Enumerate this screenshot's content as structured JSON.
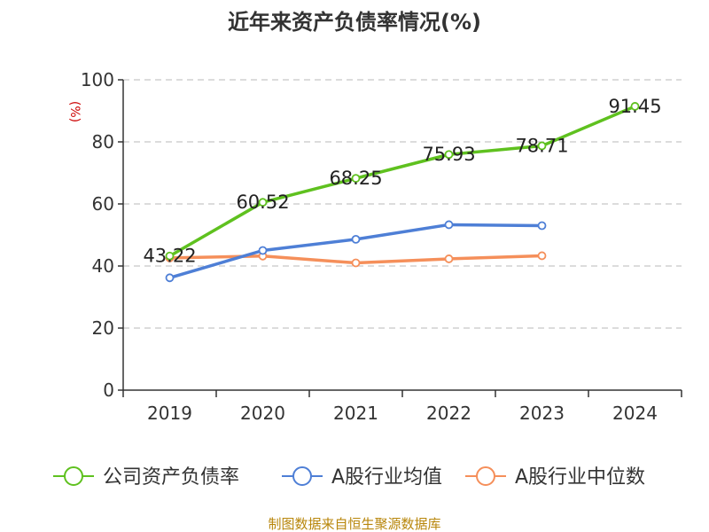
{
  "chart_data": {
    "type": "line",
    "title": "近年来资产负债率情况(%)",
    "ylabel": "(%)",
    "xlabel": "",
    "categories": [
      "2019",
      "2020",
      "2021",
      "2022",
      "2023",
      "2024"
    ],
    "ylim": [
      0,
      100
    ],
    "yticks": [
      0,
      20,
      40,
      60,
      80,
      100
    ],
    "grid": true,
    "legend_position": "bottom",
    "series": [
      {
        "name": "公司资产负债率",
        "color": "#5fc11f",
        "values": [
          43.22,
          60.52,
          68.25,
          75.93,
          78.71,
          91.45
        ],
        "labels": [
          "43.22",
          "60.52",
          "68.25",
          "75.93",
          "78.71",
          "91.45"
        ],
        "show_labels": true
      },
      {
        "name": "A股行业均值",
        "color": "#4e7fd6",
        "values": [
          36.2,
          45.0,
          48.6,
          53.3,
          53.0,
          null
        ],
        "show_labels": false
      },
      {
        "name": "A股行业中位数",
        "color": "#f58f5a",
        "values": [
          42.6,
          43.2,
          41.0,
          42.3,
          43.3,
          null
        ],
        "show_labels": false
      }
    ]
  },
  "source_text": "制图数据来自恒生聚源数据库"
}
